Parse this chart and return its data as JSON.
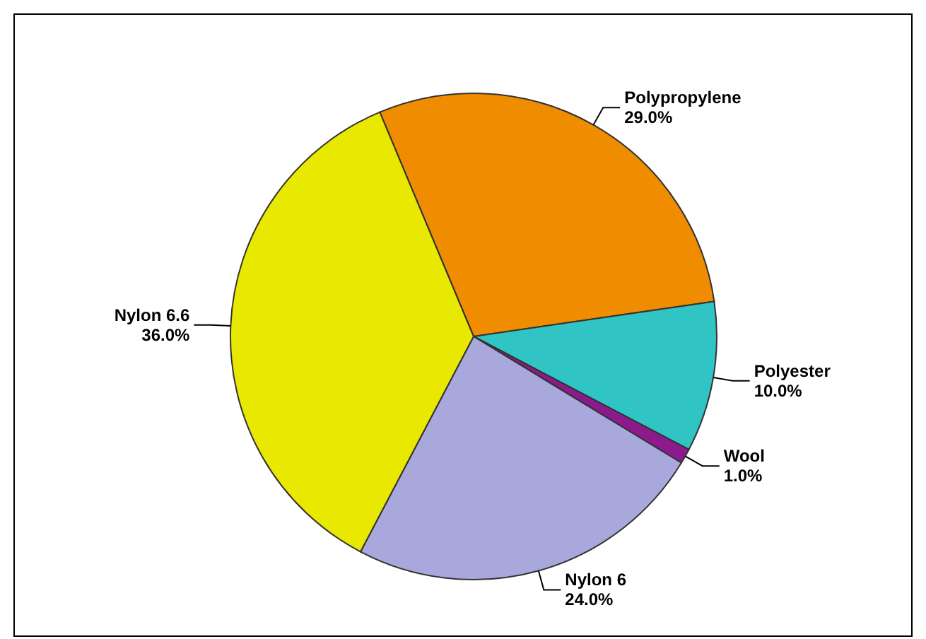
{
  "chart_data": {
    "type": "pie",
    "categories": [
      "Polypropylene",
      "Polyester",
      "Wool",
      "Nylon 6",
      "Nylon 6.6"
    ],
    "values": [
      29,
      10,
      1,
      24,
      36
    ],
    "value_labels": [
      "29.0%",
      "10.0%",
      "1.0%",
      "24.0%",
      "36.0%"
    ],
    "colors": [
      "#f08c00",
      "#30c4c4",
      "#8c1a8c",
      "#a8a8dc",
      "#e8e800"
    ]
  }
}
